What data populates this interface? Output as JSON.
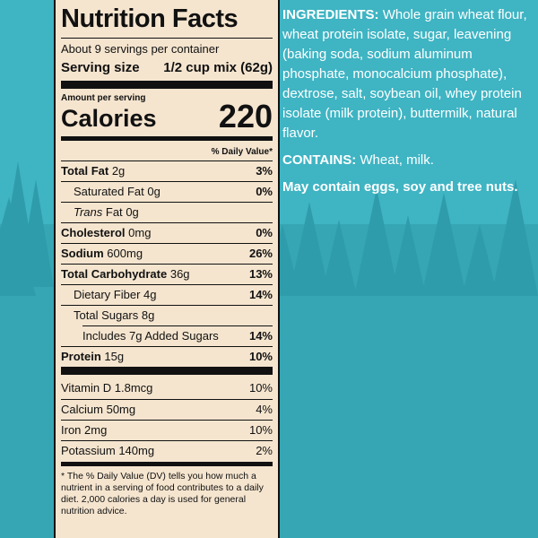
{
  "nutrition_facts": {
    "title": "Nutrition Facts",
    "servings": "About 9 servings per container",
    "serving_size_label": "Serving size",
    "serving_size_value": "1/2 cup mix (62g)",
    "amount_per_serving": "Amount per serving",
    "calories_label": "Calories",
    "calories_value": "220",
    "daily_value_header": "% Daily Value*",
    "rows": [
      {
        "name": "Total Fat",
        "amount": "2g",
        "dv": "3%"
      },
      {
        "name": "Saturated Fat",
        "amount": "0g",
        "dv": "0%"
      },
      {
        "name_italic": "Trans",
        "name": "Fat",
        "amount": "0g"
      },
      {
        "name": "Cholesterol",
        "amount": "0mg",
        "dv": "0%"
      },
      {
        "name": "Sodium",
        "amount": "600mg",
        "dv": "26%"
      },
      {
        "name": "Total Carbohydrate",
        "amount": "36g",
        "dv": "13%"
      },
      {
        "name": "Dietary Fiber",
        "amount": "4g",
        "dv": "14%"
      },
      {
        "name": "Total Sugars",
        "amount": "8g"
      },
      {
        "name": "Includes 7g Added Sugars",
        "dv": "14%"
      },
      {
        "name": "Protein",
        "amount": "15g",
        "dv": "10%"
      }
    ],
    "vitamins": [
      {
        "name": "Vitamin D",
        "amount": "1.8mcg",
        "dv": "10%"
      },
      {
        "name": "Calcium",
        "amount": "50mg",
        "dv": "4%"
      },
      {
        "name": "Iron",
        "amount": "2mg",
        "dv": "10%"
      },
      {
        "name": "Potassium",
        "amount": "140mg",
        "dv": "2%"
      }
    ],
    "footnote": "* The % Daily Value (DV) tells you how much a nutrient in a serving of food contributes to a daily diet. 2,000 calories a day is used for general nutrition advice."
  },
  "ingredients": {
    "label": "INGREDIENTS:",
    "text": "Whole grain wheat flour, wheat protein isolate, sugar, leavening (baking soda, sodium aluminum phosphate, monocalcium phosphate), dextrose, salt, soybean oil, whey protein isolate (milk protein), buttermilk, natural flavor.",
    "contains_label": "CONTAINS:",
    "contains_text": "Wheat, milk.",
    "may_contain": "May contain eggs, soy and tree nuts."
  }
}
